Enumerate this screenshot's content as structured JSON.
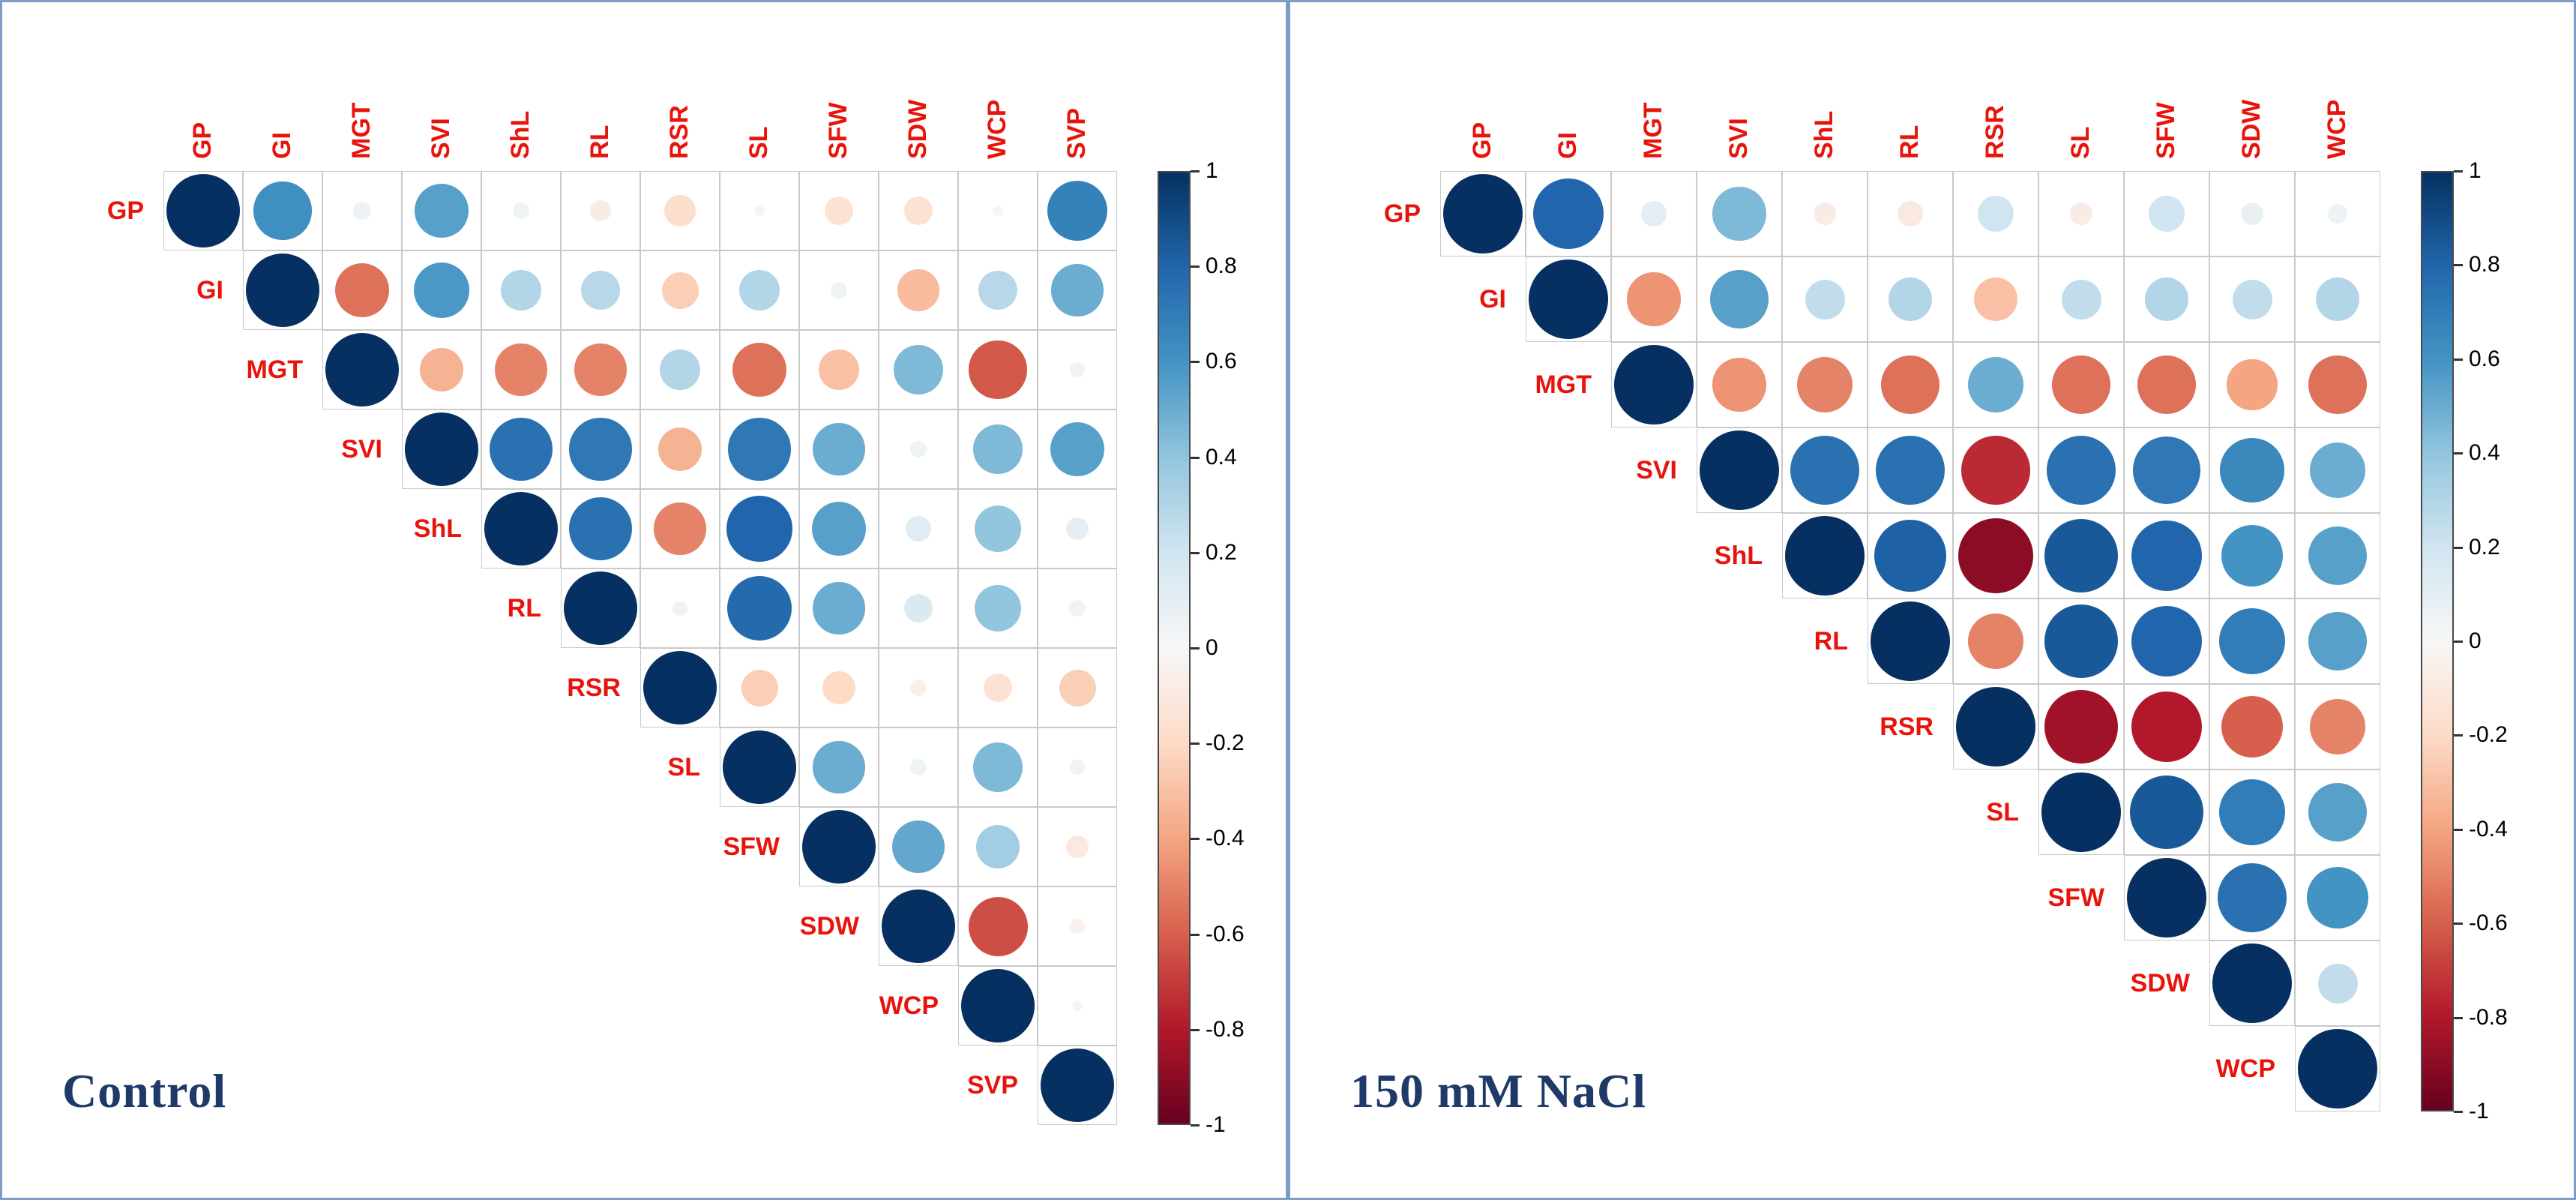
{
  "chart_data": [
    {
      "type": "heatmap",
      "subtype": "correlation-matrix",
      "title": "Control",
      "triangle": "upper",
      "scale": [
        -1,
        1
      ],
      "labels": [
        "GP",
        "GI",
        "MGT",
        "SVI",
        "ShL",
        "RL",
        "RSR",
        "SL",
        "SFW",
        "SDW",
        "WCP",
        "SVP"
      ],
      "rows": [
        [
          1,
          0.62,
          0.06,
          0.55,
          0.05,
          -0.08,
          -0.18,
          0.02,
          -0.15,
          -0.15,
          0.02,
          0.68
        ],
        [
          1,
          -0.55,
          0.58,
          0.3,
          0.28,
          -0.25,
          0.3,
          0.05,
          -0.32,
          0.28,
          0.5
        ],
        [
          1,
          -0.35,
          -0.5,
          -0.5,
          0.3,
          -0.55,
          -0.3,
          0.45,
          -0.62,
          0.04
        ],
        [
          1,
          0.75,
          0.72,
          -0.35,
          0.72,
          0.5,
          0.05,
          0.45,
          0.55
        ],
        [
          1,
          0.75,
          -0.5,
          0.8,
          0.55,
          0.12,
          0.4,
          0.1
        ],
        [
          1,
          0.04,
          0.78,
          0.5,
          0.15,
          0.4,
          0.05
        ],
        [
          1,
          -0.25,
          -0.2,
          -0.05,
          -0.15,
          -0.25
        ],
        [
          1,
          0.5,
          0.05,
          0.45,
          0.04
        ],
        [
          1,
          0.52,
          0.35,
          -0.1
        ],
        [
          1,
          -0.65,
          -0.04
        ],
        [
          1,
          0.02
        ],
        [
          1
        ]
      ]
    },
    {
      "type": "heatmap",
      "subtype": "correlation-matrix",
      "title": "150 mM NaCl",
      "triangle": "upper",
      "scale": [
        -1,
        1
      ],
      "labels": [
        "GP",
        "GI",
        "MGT",
        "SVI",
        "ShL",
        "RL",
        "RSR",
        "SL",
        "SFW",
        "SDW",
        "WCP"
      ],
      "rows": [
        [
          1,
          0.8,
          0.1,
          0.45,
          -0.08,
          -0.1,
          0.2,
          -0.08,
          0.2,
          0.08,
          0.06
        ],
        [
          1,
          -0.45,
          0.55,
          0.25,
          0.3,
          -0.3,
          0.25,
          0.3,
          0.25,
          0.3
        ],
        [
          1,
          -0.45,
          -0.5,
          -0.55,
          0.5,
          -0.55,
          -0.55,
          -0.4,
          -0.55
        ],
        [
          1,
          0.75,
          0.75,
          -0.75,
          0.75,
          0.72,
          0.65,
          0.5
        ],
        [
          1,
          0.82,
          -0.9,
          0.85,
          0.8,
          0.6,
          0.55
        ],
        [
          1,
          -0.5,
          0.85,
          0.8,
          0.7,
          0.55
        ],
        [
          1,
          -0.85,
          -0.8,
          -0.6,
          -0.5
        ],
        [
          1,
          0.85,
          0.7,
          0.55
        ],
        [
          1,
          0.75,
          0.6
        ],
        [
          1,
          0.25
        ],
        [
          1
        ]
      ]
    }
  ],
  "colorbar": {
    "ticks": [
      "1",
      "0.8",
      "0.6",
      "0.4",
      "0.2",
      "0",
      "-0.2",
      "-0.4",
      "-0.6",
      "-0.8",
      "-1"
    ],
    "gradient_stops": [
      {
        "value": 1.0,
        "color": "#053061"
      },
      {
        "value": 0.8,
        "color": "#2166AC"
      },
      {
        "value": 0.6,
        "color": "#4393C3"
      },
      {
        "value": 0.4,
        "color": "#92C5DE"
      },
      {
        "value": 0.2,
        "color": "#D1E5F0"
      },
      {
        "value": 0.0,
        "color": "#F7F7F7"
      },
      {
        "value": -0.2,
        "color": "#FDDBC7"
      },
      {
        "value": -0.4,
        "color": "#F4A582"
      },
      {
        "value": -0.6,
        "color": "#D6604D"
      },
      {
        "value": -0.8,
        "color": "#B2182B"
      },
      {
        "value": -1.0,
        "color": "#67001F"
      }
    ]
  },
  "colors": {
    "label": "#E8140C",
    "title": "#1F3A68",
    "panel_border": "#7D9EC4",
    "grid_line": "#C9C9C9"
  }
}
